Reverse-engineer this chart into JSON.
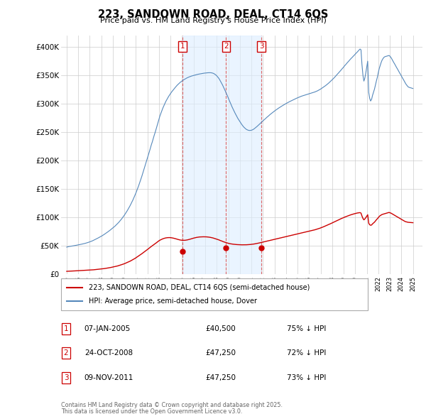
{
  "title": "223, SANDOWN ROAD, DEAL, CT14 6QS",
  "subtitle": "Price paid vs. HM Land Registry's House Price Index (HPI)",
  "legend_line1": "223, SANDOWN ROAD, DEAL, CT14 6QS (semi-detached house)",
  "legend_line2": "HPI: Average price, semi-detached house, Dover",
  "footer_line1": "Contains HM Land Registry data © Crown copyright and database right 2025.",
  "footer_line2": "This data is licensed under the Open Government Licence v3.0.",
  "transactions": [
    {
      "num": "1",
      "date": "07-JAN-2005",
      "price": "£40,500",
      "pct": "75% ↓ HPI",
      "x": 2005.03
    },
    {
      "num": "2",
      "date": "24-OCT-2008",
      "price": "£47,250",
      "pct": "72% ↓ HPI",
      "x": 2008.81
    },
    {
      "num": "3",
      "date": "09-NOV-2011",
      "price": "£47,250",
      "pct": "73% ↓ HPI",
      "x": 2011.86
    }
  ],
  "transaction_prices": [
    40500,
    47250,
    47250
  ],
  "red_color": "#cc0000",
  "blue_color": "#5588bb",
  "blue_fill_color": "#ddeeff",
  "vline_color": "#dd6666",
  "bg_color": "#ffffff",
  "grid_color": "#cccccc",
  "ylim": [
    0,
    420000
  ],
  "xlim_start": 1994.5,
  "xlim_end": 2025.8,
  "yticks": [
    0,
    50000,
    100000,
    150000,
    200000,
    250000,
    300000,
    350000,
    400000
  ],
  "ytick_labels": [
    "£0",
    "£50K",
    "£100K",
    "£150K",
    "£200K",
    "£250K",
    "£300K",
    "£350K",
    "£400K"
  ],
  "hpi_x": [
    1995.0,
    1995.08,
    1995.17,
    1995.25,
    1995.33,
    1995.42,
    1995.5,
    1995.58,
    1995.67,
    1995.75,
    1995.83,
    1995.92,
    1996.0,
    1996.08,
    1996.17,
    1996.25,
    1996.33,
    1996.42,
    1996.5,
    1996.58,
    1996.67,
    1996.75,
    1996.83,
    1996.92,
    1997.0,
    1997.08,
    1997.17,
    1997.25,
    1997.33,
    1997.42,
    1997.5,
    1997.58,
    1997.67,
    1997.75,
    1997.83,
    1997.92,
    1998.0,
    1998.08,
    1998.17,
    1998.25,
    1998.33,
    1998.42,
    1998.5,
    1998.58,
    1998.67,
    1998.75,
    1998.83,
    1998.92,
    1999.0,
    1999.08,
    1999.17,
    1999.25,
    1999.33,
    1999.42,
    1999.5,
    1999.58,
    1999.67,
    1999.75,
    1999.83,
    1999.92,
    2000.0,
    2000.08,
    2000.17,
    2000.25,
    2000.33,
    2000.42,
    2000.5,
    2000.58,
    2000.67,
    2000.75,
    2000.83,
    2000.92,
    2001.0,
    2001.08,
    2001.17,
    2001.25,
    2001.33,
    2001.42,
    2001.5,
    2001.58,
    2001.67,
    2001.75,
    2001.83,
    2001.92,
    2002.0,
    2002.08,
    2002.17,
    2002.25,
    2002.33,
    2002.42,
    2002.5,
    2002.58,
    2002.67,
    2002.75,
    2002.83,
    2002.92,
    2003.0,
    2003.08,
    2003.17,
    2003.25,
    2003.33,
    2003.42,
    2003.5,
    2003.58,
    2003.67,
    2003.75,
    2003.83,
    2003.92,
    2004.0,
    2004.08,
    2004.17,
    2004.25,
    2004.33,
    2004.42,
    2004.5,
    2004.58,
    2004.67,
    2004.75,
    2004.83,
    2004.92,
    2005.0,
    2005.08,
    2005.17,
    2005.25,
    2005.33,
    2005.42,
    2005.5,
    2005.58,
    2005.67,
    2005.75,
    2005.83,
    2005.92,
    2006.0,
    2006.08,
    2006.17,
    2006.25,
    2006.33,
    2006.42,
    2006.5,
    2006.58,
    2006.67,
    2006.75,
    2006.83,
    2006.92,
    2007.0,
    2007.08,
    2007.17,
    2007.25,
    2007.33,
    2007.42,
    2007.5,
    2007.58,
    2007.67,
    2007.75,
    2007.83,
    2007.92,
    2008.0,
    2008.08,
    2008.17,
    2008.25,
    2008.33,
    2008.42,
    2008.5,
    2008.58,
    2008.67,
    2008.75,
    2008.83,
    2008.92,
    2009.0,
    2009.08,
    2009.17,
    2009.25,
    2009.33,
    2009.42,
    2009.5,
    2009.58,
    2009.67,
    2009.75,
    2009.83,
    2009.92,
    2010.0,
    2010.08,
    2010.17,
    2010.25,
    2010.33,
    2010.42,
    2010.5,
    2010.58,
    2010.67,
    2010.75,
    2010.83,
    2010.92,
    2011.0,
    2011.08,
    2011.17,
    2011.25,
    2011.33,
    2011.42,
    2011.5,
    2011.58,
    2011.67,
    2011.75,
    2011.83,
    2011.92,
    2012.0,
    2012.08,
    2012.17,
    2012.25,
    2012.33,
    2012.42,
    2012.5,
    2012.58,
    2012.67,
    2012.75,
    2012.83,
    2012.92,
    2013.0,
    2013.08,
    2013.17,
    2013.25,
    2013.33,
    2013.42,
    2013.5,
    2013.58,
    2013.67,
    2013.75,
    2013.83,
    2013.92,
    2014.0,
    2014.08,
    2014.17,
    2014.25,
    2014.33,
    2014.42,
    2014.5,
    2014.58,
    2014.67,
    2014.75,
    2014.83,
    2014.92,
    2015.0,
    2015.08,
    2015.17,
    2015.25,
    2015.33,
    2015.42,
    2015.5,
    2015.58,
    2015.67,
    2015.75,
    2015.83,
    2015.92,
    2016.0,
    2016.08,
    2016.17,
    2016.25,
    2016.33,
    2016.42,
    2016.5,
    2016.58,
    2016.67,
    2016.75,
    2016.83,
    2016.92,
    2017.0,
    2017.08,
    2017.17,
    2017.25,
    2017.33,
    2017.42,
    2017.5,
    2017.58,
    2017.67,
    2017.75,
    2017.83,
    2017.92,
    2018.0,
    2018.08,
    2018.17,
    2018.25,
    2018.33,
    2018.42,
    2018.5,
    2018.58,
    2018.67,
    2018.75,
    2018.83,
    2018.92,
    2019.0,
    2019.08,
    2019.17,
    2019.25,
    2019.33,
    2019.42,
    2019.5,
    2019.58,
    2019.67,
    2019.75,
    2019.83,
    2019.92,
    2020.0,
    2020.08,
    2020.17,
    2020.25,
    2020.33,
    2020.42,
    2020.5,
    2020.58,
    2020.67,
    2020.75,
    2020.83,
    2020.92,
    2021.0,
    2021.08,
    2021.17,
    2021.25,
    2021.33,
    2021.42,
    2021.5,
    2021.58,
    2021.67,
    2021.75,
    2021.83,
    2021.92,
    2022.0,
    2022.08,
    2022.17,
    2022.25,
    2022.33,
    2022.42,
    2022.5,
    2022.58,
    2022.67,
    2022.75,
    2022.83,
    2022.92,
    2023.0,
    2023.08,
    2023.17,
    2023.25,
    2023.33,
    2023.42,
    2023.5,
    2023.58,
    2023.67,
    2023.75,
    2023.83,
    2023.92,
    2024.0,
    2024.08,
    2024.17,
    2024.25,
    2024.33,
    2024.42,
    2024.5,
    2024.58,
    2024.67,
    2024.75,
    2024.83,
    2024.92,
    2025.0
  ],
  "hpi_y": [
    48000,
    48500,
    49000,
    49200,
    49500,
    49800,
    50000,
    50300,
    50600,
    51000,
    51300,
    51700,
    52000,
    52300,
    52700,
    53000,
    53400,
    53800,
    54200,
    54600,
    55100,
    55600,
    56100,
    56700,
    57300,
    57900,
    58600,
    59300,
    60100,
    60900,
    61700,
    62600,
    63500,
    64400,
    65300,
    66200,
    67200,
    68200,
    69300,
    70400,
    71500,
    72700,
    73900,
    75100,
    76400,
    77700,
    79000,
    80300,
    81700,
    83200,
    84700,
    86300,
    87900,
    89600,
    91400,
    93300,
    95300,
    97400,
    99600,
    101900,
    104300,
    106800,
    109400,
    112200,
    115100,
    118100,
    121200,
    124500,
    127900,
    131500,
    135300,
    139300,
    143400,
    147700,
    152200,
    156900,
    161700,
    166700,
    171900,
    177200,
    182700,
    188300,
    193800,
    199400,
    205000,
    210700,
    216400,
    222100,
    227700,
    233300,
    238900,
    244500,
    250100,
    255800,
    261600,
    267500,
    273500,
    278900,
    283800,
    288300,
    292500,
    296500,
    300300,
    303900,
    307200,
    310200,
    313000,
    315700,
    318200,
    320600,
    322900,
    325100,
    327200,
    329200,
    331100,
    332900,
    334600,
    336200,
    337700,
    339100,
    340400,
    341600,
    342700,
    343700,
    344700,
    345600,
    346400,
    347100,
    347800,
    348400,
    349000,
    349500,
    350000,
    350500,
    351000,
    351400,
    351800,
    352100,
    352500,
    352800,
    353100,
    353400,
    353700,
    354000,
    354200,
    354400,
    354600,
    354700,
    354800,
    354800,
    354700,
    354400,
    353900,
    353200,
    352200,
    350900,
    349300,
    347400,
    345200,
    342600,
    339700,
    336600,
    333300,
    329800,
    326100,
    322300,
    318400,
    314400,
    310400,
    306300,
    302300,
    298400,
    294600,
    290900,
    287400,
    284000,
    280700,
    277500,
    274400,
    271500,
    268700,
    266100,
    263700,
    261500,
    259500,
    257700,
    256200,
    255000,
    254100,
    253500,
    253200,
    253300,
    253600,
    254200,
    255100,
    256200,
    257500,
    258900,
    260400,
    261900,
    263500,
    265100,
    266700,
    268300,
    269900,
    271500,
    273000,
    274600,
    276100,
    277600,
    279000,
    280500,
    281900,
    283300,
    284600,
    285900,
    287200,
    288500,
    289700,
    290900,
    292100,
    293200,
    294300,
    295400,
    296500,
    297500,
    298500,
    299500,
    300500,
    301400,
    302300,
    303200,
    304100,
    305000,
    305800,
    306700,
    307500,
    308300,
    309100,
    309900,
    310600,
    311300,
    312000,
    312700,
    313400,
    314000,
    314600,
    315200,
    315700,
    316200,
    316700,
    317200,
    317700,
    318200,
    318700,
    319200,
    319700,
    320300,
    320900,
    321600,
    322300,
    323100,
    324000,
    325000,
    326000,
    327100,
    328200,
    329400,
    330600,
    331900,
    333200,
    334600,
    336000,
    337500,
    339100,
    340700,
    342300,
    344000,
    345700,
    347500,
    349300,
    351200,
    353100,
    355000,
    357000,
    358900,
    360900,
    362900,
    364900,
    366900,
    368900,
    370900,
    372800,
    374700,
    376600,
    378500,
    380300,
    382000,
    383800,
    385600,
    387400,
    389200,
    391000,
    392800,
    394600,
    396400,
    395000,
    370000,
    350000,
    340000,
    345000,
    355000,
    365000,
    375000,
    320000,
    310000,
    305000,
    308000,
    315000,
    320000,
    326000,
    333000,
    340000,
    347000,
    355000,
    362000,
    368000,
    373000,
    377000,
    380000,
    382000,
    383000,
    383500,
    384000,
    384500,
    385000,
    384000,
    382000,
    379000,
    376000,
    373000,
    370000,
    367000,
    364000,
    361000,
    358000,
    355000,
    352000,
    349000,
    346000,
    343000,
    340000,
    337000,
    334000,
    332000,
    330000,
    329000,
    328500,
    328000,
    327500,
    327000
  ],
  "red_x": [
    1995.0,
    1995.08,
    1995.17,
    1995.25,
    1995.33,
    1995.42,
    1995.5,
    1995.58,
    1995.67,
    1995.75,
    1995.83,
    1995.92,
    1996.0,
    1996.08,
    1996.17,
    1996.25,
    1996.33,
    1996.42,
    1996.5,
    1996.58,
    1996.67,
    1996.75,
    1996.83,
    1996.92,
    1997.0,
    1997.08,
    1997.17,
    1997.25,
    1997.33,
    1997.42,
    1997.5,
    1997.58,
    1997.67,
    1997.75,
    1997.83,
    1997.92,
    1998.0,
    1998.08,
    1998.17,
    1998.25,
    1998.33,
    1998.42,
    1998.5,
    1998.58,
    1998.67,
    1998.75,
    1998.83,
    1998.92,
    1999.0,
    1999.08,
    1999.17,
    1999.25,
    1999.33,
    1999.42,
    1999.5,
    1999.58,
    1999.67,
    1999.75,
    1999.83,
    1999.92,
    2000.0,
    2000.08,
    2000.17,
    2000.25,
    2000.33,
    2000.42,
    2000.5,
    2000.58,
    2000.67,
    2000.75,
    2000.83,
    2000.92,
    2001.0,
    2001.08,
    2001.17,
    2001.25,
    2001.33,
    2001.42,
    2001.5,
    2001.58,
    2001.67,
    2001.75,
    2001.83,
    2001.92,
    2002.0,
    2002.08,
    2002.17,
    2002.25,
    2002.33,
    2002.42,
    2002.5,
    2002.58,
    2002.67,
    2002.75,
    2002.83,
    2002.92,
    2003.0,
    2003.08,
    2003.17,
    2003.25,
    2003.33,
    2003.42,
    2003.5,
    2003.58,
    2003.67,
    2003.75,
    2003.83,
    2003.92,
    2004.0,
    2004.08,
    2004.17,
    2004.25,
    2004.33,
    2004.42,
    2004.5,
    2004.58,
    2004.67,
    2004.75,
    2004.83,
    2004.92,
    2005.0,
    2005.08,
    2005.17,
    2005.25,
    2005.33,
    2005.42,
    2005.5,
    2005.58,
    2005.67,
    2005.75,
    2005.83,
    2005.92,
    2006.0,
    2006.08,
    2006.17,
    2006.25,
    2006.33,
    2006.42,
    2006.5,
    2006.58,
    2006.67,
    2006.75,
    2006.83,
    2006.92,
    2007.0,
    2007.08,
    2007.17,
    2007.25,
    2007.33,
    2007.42,
    2007.5,
    2007.58,
    2007.67,
    2007.75,
    2007.83,
    2007.92,
    2008.0,
    2008.08,
    2008.17,
    2008.25,
    2008.33,
    2008.42,
    2008.5,
    2008.58,
    2008.67,
    2008.75,
    2008.83,
    2008.92,
    2009.0,
    2009.08,
    2009.17,
    2009.25,
    2009.33,
    2009.42,
    2009.5,
    2009.58,
    2009.67,
    2009.75,
    2009.83,
    2009.92,
    2010.0,
    2010.08,
    2010.17,
    2010.25,
    2010.33,
    2010.42,
    2010.5,
    2010.58,
    2010.67,
    2010.75,
    2010.83,
    2010.92,
    2011.0,
    2011.08,
    2011.17,
    2011.25,
    2011.33,
    2011.42,
    2011.5,
    2011.58,
    2011.67,
    2011.75,
    2011.83,
    2011.92,
    2012.0,
    2012.08,
    2012.17,
    2012.25,
    2012.33,
    2012.42,
    2012.5,
    2012.58,
    2012.67,
    2012.75,
    2012.83,
    2012.92,
    2013.0,
    2013.08,
    2013.17,
    2013.25,
    2013.33,
    2013.42,
    2013.5,
    2013.58,
    2013.67,
    2013.75,
    2013.83,
    2013.92,
    2014.0,
    2014.08,
    2014.17,
    2014.25,
    2014.33,
    2014.42,
    2014.5,
    2014.58,
    2014.67,
    2014.75,
    2014.83,
    2014.92,
    2015.0,
    2015.08,
    2015.17,
    2015.25,
    2015.33,
    2015.42,
    2015.5,
    2015.58,
    2015.67,
    2015.75,
    2015.83,
    2015.92,
    2016.0,
    2016.08,
    2016.17,
    2016.25,
    2016.33,
    2016.42,
    2016.5,
    2016.58,
    2016.67,
    2016.75,
    2016.83,
    2016.92,
    2017.0,
    2017.08,
    2017.17,
    2017.25,
    2017.33,
    2017.42,
    2017.5,
    2017.58,
    2017.67,
    2017.75,
    2017.83,
    2017.92,
    2018.0,
    2018.08,
    2018.17,
    2018.25,
    2018.33,
    2018.42,
    2018.5,
    2018.58,
    2018.67,
    2018.75,
    2018.83,
    2018.92,
    2019.0,
    2019.08,
    2019.17,
    2019.25,
    2019.33,
    2019.42,
    2019.5,
    2019.58,
    2019.67,
    2019.75,
    2019.83,
    2019.92,
    2020.0,
    2020.08,
    2020.17,
    2020.25,
    2020.33,
    2020.42,
    2020.5,
    2020.58,
    2020.67,
    2020.75,
    2020.83,
    2020.92,
    2021.0,
    2021.08,
    2021.17,
    2021.25,
    2021.33,
    2021.42,
    2021.5,
    2021.58,
    2021.67,
    2021.75,
    2021.83,
    2021.92,
    2022.0,
    2022.08,
    2022.17,
    2022.25,
    2022.33,
    2022.42,
    2022.5,
    2022.58,
    2022.67,
    2022.75,
    2022.83,
    2022.92,
    2023.0,
    2023.08,
    2023.17,
    2023.25,
    2023.33,
    2023.42,
    2023.5,
    2023.58,
    2023.67,
    2023.75,
    2023.83,
    2023.92,
    2024.0,
    2024.08,
    2024.17,
    2024.25,
    2024.33,
    2024.42,
    2024.5,
    2024.58,
    2024.67,
    2024.75,
    2024.83,
    2024.92,
    2025.0
  ],
  "red_y": [
    5500,
    5600,
    5700,
    5750,
    5800,
    5900,
    6000,
    6100,
    6200,
    6300,
    6400,
    6500,
    6600,
    6700,
    6800,
    6900,
    7000,
    7100,
    7200,
    7300,
    7400,
    7500,
    7600,
    7700,
    7800,
    7900,
    8000,
    8100,
    8200,
    8400,
    8500,
    8700,
    8900,
    9100,
    9300,
    9500,
    9700,
    9900,
    10100,
    10300,
    10600,
    10800,
    11100,
    11400,
    11700,
    12000,
    12300,
    12700,
    13000,
    13400,
    13800,
    14200,
    14600,
    15000,
    15500,
    16000,
    16500,
    17100,
    17700,
    18300,
    18900,
    19600,
    20300,
    21000,
    21800,
    22600,
    23400,
    24300,
    25200,
    26200,
    27200,
    28200,
    29300,
    30400,
    31500,
    32700,
    33900,
    35100,
    36300,
    37500,
    38700,
    39900,
    41200,
    42500,
    43900,
    45200,
    46600,
    47900,
    49200,
    50500,
    51700,
    52900,
    54100,
    55400,
    56700,
    58000,
    59300,
    60300,
    61200,
    62000,
    62700,
    63300,
    63800,
    64200,
    64500,
    64700,
    64800,
    64800,
    64700,
    64500,
    64200,
    63800,
    63400,
    62900,
    62400,
    61900,
    61400,
    61000,
    60600,
    60300,
    60100,
    60000,
    60000,
    60100,
    60300,
    60600,
    61000,
    61400,
    61900,
    62400,
    62900,
    63400,
    63900,
    64300,
    64700,
    65100,
    65400,
    65700,
    65900,
    66000,
    66100,
    66200,
    66200,
    66200,
    66200,
    66100,
    66000,
    65800,
    65600,
    65300,
    65000,
    64600,
    64200,
    63700,
    63200,
    62700,
    62100,
    61500,
    60900,
    60200,
    59500,
    58900,
    58200,
    57500,
    56900,
    56300,
    55800,
    55300,
    54800,
    54400,
    54000,
    53700,
    53500,
    53200,
    53000,
    52800,
    52700,
    52500,
    52400,
    52300,
    52200,
    52200,
    52100,
    52100,
    52100,
    52100,
    52200,
    52200,
    52300,
    52400,
    52500,
    52700,
    52900,
    53100,
    53300,
    53600,
    53900,
    54200,
    54600,
    54900,
    55300,
    55700,
    56100,
    56500,
    56900,
    57300,
    57700,
    58100,
    58500,
    58900,
    59300,
    59700,
    60100,
    60500,
    60900,
    61300,
    61700,
    62100,
    62500,
    62900,
    63300,
    63700,
    64100,
    64500,
    64900,
    65300,
    65700,
    66100,
    66500,
    66900,
    67300,
    67700,
    68100,
    68500,
    68900,
    69300,
    69700,
    70100,
    70500,
    70900,
    71300,
    71700,
    72100,
    72500,
    72900,
    73300,
    73700,
    74100,
    74500,
    74900,
    75300,
    75700,
    76100,
    76500,
    76900,
    77300,
    77700,
    78100,
    78500,
    79000,
    79500,
    80000,
    80600,
    81200,
    81800,
    82400,
    83100,
    83800,
    84500,
    85200,
    85900,
    86700,
    87400,
    88200,
    89000,
    89800,
    90600,
    91400,
    92200,
    93000,
    93800,
    94600,
    95400,
    96200,
    97000,
    97800,
    98600,
    99300,
    100100,
    100800,
    101500,
    102200,
    102800,
    103400,
    104000,
    104600,
    105200,
    105700,
    106200,
    106700,
    107200,
    107600,
    108000,
    108300,
    108500,
    108700,
    107900,
    103000,
    98500,
    96000,
    97500,
    100000,
    102500,
    105000,
    90000,
    87500,
    86500,
    87000,
    89000,
    90500,
    92000,
    94000,
    96000,
    98000,
    100000,
    102000,
    103500,
    104500,
    105500,
    106000,
    106500,
    107000,
    107500,
    108000,
    108500,
    109000,
    108500,
    108000,
    107000,
    106000,
    105000,
    104000,
    103000,
    102000,
    101000,
    100000,
    99000,
    98000,
    97000,
    96000,
    95000,
    94000,
    93000,
    92500,
    92000,
    91700,
    91500,
    91400,
    91300,
    91200,
    91000
  ]
}
